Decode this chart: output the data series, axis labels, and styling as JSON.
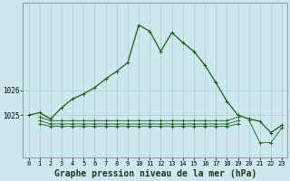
{
  "title": "Graphe pression niveau de la mer (hPa)",
  "bg_color": "#cce8ee",
  "grid_color": "#aacccc",
  "line_color": "#1a5c1a",
  "x_labels": [
    "0",
    "1",
    "2",
    "3",
    "4",
    "5",
    "6",
    "7",
    "8",
    "9",
    "10",
    "11",
    "12",
    "13",
    "14",
    "15",
    "16",
    "17",
    "18",
    "19",
    "20",
    "21",
    "22",
    "23"
  ],
  "main_line": [
    1025.0,
    1025.1,
    1024.85,
    1025.3,
    1025.65,
    1025.85,
    1026.1,
    1026.45,
    1026.75,
    1027.1,
    1028.6,
    1028.35,
    1027.55,
    1028.3,
    1027.9,
    1027.55,
    1027.0,
    1026.3,
    1025.55,
    1025.0,
    1024.85,
    1024.75,
    1024.3,
    1024.6
  ],
  "flat1": [
    null,
    1024.92,
    1024.78,
    1024.78,
    1024.78,
    1024.78,
    1024.78,
    1024.78,
    1024.78,
    1024.78,
    1024.78,
    1024.78,
    1024.78,
    1024.78,
    1024.78,
    1024.78,
    1024.78,
    1024.78,
    1024.78,
    1024.92,
    null,
    null,
    null,
    null
  ],
  "flat2": [
    null,
    1024.78,
    1024.65,
    1024.65,
    1024.65,
    1024.65,
    1024.65,
    1024.65,
    1024.65,
    1024.65,
    1024.65,
    1024.65,
    1024.65,
    1024.65,
    1024.65,
    1024.65,
    1024.65,
    1024.65,
    1024.65,
    1024.78,
    null,
    null,
    null,
    null
  ],
  "flat3": [
    null,
    1024.65,
    1024.55,
    1024.55,
    1024.55,
    1024.55,
    1024.55,
    1024.55,
    1024.55,
    1024.55,
    1024.55,
    1024.55,
    1024.55,
    1024.55,
    1024.55,
    1024.55,
    1024.55,
    1024.55,
    1024.55,
    1024.65,
    null,
    null,
    null,
    null
  ],
  "bot_line": [
    null,
    null,
    null,
    null,
    null,
    null,
    null,
    null,
    null,
    null,
    null,
    null,
    null,
    null,
    null,
    null,
    null,
    null,
    null,
    null,
    1024.8,
    1023.9,
    1023.9,
    1024.5
  ],
  "ylim": [
    1023.3,
    1029.5
  ],
  "yticks": [
    1025,
    1026
  ],
  "xlim": [
    -0.5,
    23.5
  ],
  "xlabel_fontsize": 5.0,
  "ylabel_fontsize": 5.5,
  "title_fontsize": 7.0
}
